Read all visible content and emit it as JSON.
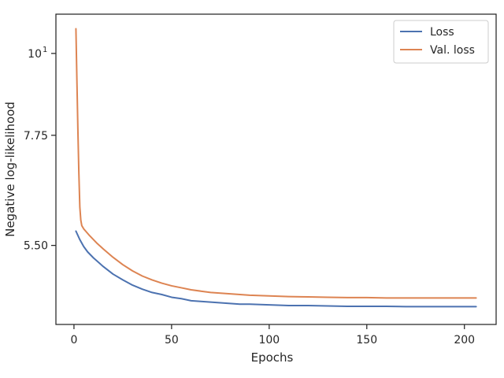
{
  "chart_data": {
    "type": "line",
    "xlabel": "Epochs",
    "ylabel": "Negative log-likelihood",
    "x_ticks": [
      {
        "value": 0,
        "label": "0"
      },
      {
        "value": 50,
        "label": "50"
      },
      {
        "value": 100,
        "label": "100"
      },
      {
        "value": 150,
        "label": "150"
      },
      {
        "value": 200,
        "label": "200"
      }
    ],
    "y_ticks": [
      {
        "value": 5.5,
        "label": "5.50"
      },
      {
        "value": 7.75,
        "label": "7.75"
      },
      {
        "value": 10,
        "label": "10",
        "exponent": "1"
      }
    ],
    "xlim": [
      -9.25,
      216.25
    ],
    "ylim": [
      4.3,
      11.3
    ],
    "yscale": "log",
    "legend": {
      "placement": "top-right"
    },
    "series": [
      {
        "name": "Loss",
        "color": "#4c72b0",
        "x": [
          1,
          3,
          5,
          7,
          10,
          15,
          20,
          25,
          30,
          35,
          40,
          45,
          50,
          55,
          60,
          65,
          70,
          75,
          80,
          85,
          90,
          100,
          110,
          120,
          130,
          140,
          150,
          160,
          170,
          180,
          190,
          200,
          206
        ],
        "y": [
          5.75,
          5.6,
          5.48,
          5.39,
          5.29,
          5.15,
          5.03,
          4.94,
          4.86,
          4.8,
          4.75,
          4.72,
          4.68,
          4.66,
          4.63,
          4.62,
          4.61,
          4.6,
          4.59,
          4.58,
          4.58,
          4.57,
          4.56,
          4.56,
          4.555,
          4.55,
          4.55,
          4.55,
          4.545,
          4.545,
          4.545,
          4.545,
          4.545
        ]
      },
      {
        "name": "Val. loss",
        "color": "#dd8452",
        "x": [
          1,
          1.5,
          2,
          2.5,
          3,
          3.5,
          4,
          5,
          6,
          7,
          8,
          10,
          12,
          15,
          20,
          25,
          30,
          35,
          40,
          45,
          50,
          55,
          60,
          65,
          70,
          75,
          80,
          85,
          90,
          100,
          110,
          120,
          130,
          140,
          150,
          160,
          170,
          180,
          190,
          200,
          206
        ],
        "y": [
          10.8,
          9.2,
          7.9,
          6.9,
          6.2,
          5.95,
          5.85,
          5.79,
          5.75,
          5.71,
          5.67,
          5.6,
          5.53,
          5.44,
          5.3,
          5.18,
          5.08,
          5.0,
          4.94,
          4.89,
          4.85,
          4.82,
          4.79,
          4.77,
          4.75,
          4.74,
          4.73,
          4.72,
          4.71,
          4.7,
          4.69,
          4.685,
          4.68,
          4.675,
          4.675,
          4.67,
          4.67,
          4.67,
          4.67,
          4.67,
          4.67
        ]
      }
    ]
  }
}
